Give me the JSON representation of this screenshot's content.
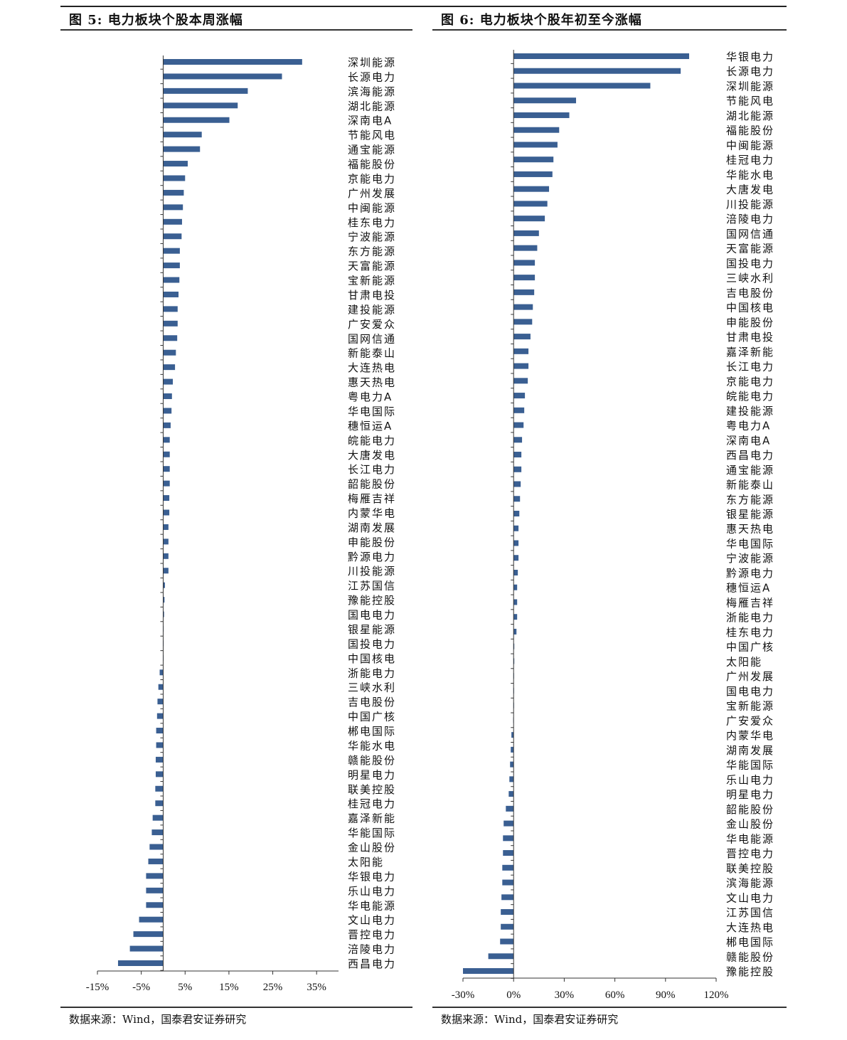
{
  "figures": [
    {
      "title": "图 5:  电力板块个股本周涨幅",
      "source": "数据来源：Wind，国泰君安证券研究"
    },
    {
      "title": "图 6:  电力板块个股年初至今涨幅",
      "source": "数据来源：Wind，国泰君安证券研究"
    }
  ],
  "colors": {
    "bar": "#3A5F92"
  },
  "chart_data": [
    {
      "type": "bar",
      "orientation": "horizontal",
      "xlim": [
        -15,
        40
      ],
      "xticks": [
        -15,
        -5,
        5,
        15,
        25,
        35
      ],
      "tick_labels": [
        "-15%",
        "-5%",
        "5%",
        "15%",
        "25%",
        "35%"
      ],
      "grid": false,
      "categories": [
        "深圳能源",
        "长源电力",
        "滨海能源",
        "湖北能源",
        "深南电A",
        "节能风电",
        "通宝能源",
        "福能股份",
        "京能电力",
        "广州发展",
        "中闽能源",
        "桂东电力",
        "宁波能源",
        "东方能源",
        "天富能源",
        "宝新能源",
        "甘肃电投",
        "建投能源",
        "广安爱众",
        "国网信通",
        "新能泰山",
        "大连热电",
        "惠天热电",
        "粤电力A",
        "华电国际",
        "穗恒运A",
        "皖能电力",
        "大唐发电",
        "长江电力",
        "韶能股份",
        "梅雁吉祥",
        "内蒙华电",
        "湖南发展",
        "申能股份",
        "黔源电力",
        "川投能源",
        "江苏国信",
        "豫能控股",
        "国电电力",
        "银星能源",
        "国投电力",
        "中国核电",
        "浙能电力",
        "三峡水利",
        "吉电股份",
        "中国广核",
        "郴电国际",
        "华能水电",
        "赣能股份",
        "明星电力",
        "联美控股",
        "桂冠电力",
        "嘉泽新能",
        "华能国际",
        "金山股份",
        "太阳能",
        "华银电力",
        "乐山电力",
        "华电能源",
        "文山电力",
        "晋控电力",
        "涪陵电力",
        "西昌电力"
      ],
      "values": [
        31.7,
        27.1,
        19.3,
        17.0,
        15.1,
        8.8,
        8.4,
        5.6,
        5.0,
        4.7,
        4.5,
        4.3,
        4.2,
        3.8,
        3.8,
        3.7,
        3.5,
        3.3,
        3.3,
        3.2,
        2.9,
        2.7,
        2.2,
        2.0,
        1.9,
        1.7,
        1.5,
        1.5,
        1.5,
        1.5,
        1.4,
        1.4,
        1.2,
        1.2,
        1.2,
        1.2,
        0.4,
        0.3,
        0.2,
        0.1,
        0.0,
        0.0,
        -0.8,
        -1.1,
        -1.3,
        -1.4,
        -1.6,
        -1.6,
        -1.7,
        -1.7,
        -1.8,
        -1.8,
        -2.4,
        -2.6,
        -3.1,
        -3.4,
        -3.9,
        -3.9,
        -3.9,
        -5.5,
        -6.8,
        -7.6,
        -10.3
      ]
    },
    {
      "type": "bar",
      "orientation": "horizontal",
      "xlim": [
        -30,
        120
      ],
      "xticks": [
        -30,
        0,
        30,
        60,
        90,
        120
      ],
      "tick_labels": [
        "-30%",
        "0%",
        "30%",
        "60%",
        "90%",
        "120%"
      ],
      "grid": false,
      "categories": [
        "华银电力",
        "长源电力",
        "深圳能源",
        "节能风电",
        "湖北能源",
        "福能股份",
        "中闽能源",
        "桂冠电力",
        "华能水电",
        "大唐发电",
        "川投能源",
        "涪陵电力",
        "国网信通",
        "天富能源",
        "国投电力",
        "三峡水利",
        "吉电股份",
        "中国核电",
        "申能股份",
        "甘肃电投",
        "嘉泽新能",
        "长江电力",
        "京能电力",
        "皖能电力",
        "建投能源",
        "粤电力A",
        "深南电A",
        "西昌电力",
        "通宝能源",
        "新能泰山",
        "东方能源",
        "银星能源",
        "惠天热电",
        "华电国际",
        "宁波能源",
        "黔源电力",
        "穗恒运A",
        "梅雁吉祥",
        "浙能电力",
        "桂东电力",
        "中国广核",
        "太阳能",
        "广州发展",
        "国电电力",
        "宝新能源",
        "广安爱众",
        "内蒙华电",
        "湖南发展",
        "华能国际",
        "乐山电力",
        "明星电力",
        "韶能股份",
        "金山股份",
        "华电能源",
        "晋控电力",
        "联美控股",
        "滨海能源",
        "文山电力",
        "江苏国信",
        "大连热电",
        "郴电国际",
        "赣能股份",
        "豫能控股"
      ],
      "values": [
        104,
        99,
        81,
        37,
        33,
        27,
        26,
        23.6,
        23,
        21,
        20,
        18.5,
        15,
        14,
        12.6,
        12.6,
        12.2,
        11.4,
        11,
        10,
        8.8,
        8.8,
        8.4,
        6.7,
        6.3,
        5.9,
        5,
        4.6,
        4.6,
        4.2,
        3.8,
        3.4,
        2.9,
        2.9,
        2.9,
        2.5,
        2.1,
        2.1,
        2.1,
        1.7,
        0.4,
        0.4,
        0.1,
        0,
        0,
        -0.2,
        -1.3,
        -1.7,
        -2.1,
        -2.5,
        -2.9,
        -4.6,
        -5.9,
        -6.3,
        -6.3,
        -6.7,
        -6.7,
        -7.2,
        -7.6,
        -7.6,
        -8,
        -15,
        -30
      ]
    }
  ]
}
